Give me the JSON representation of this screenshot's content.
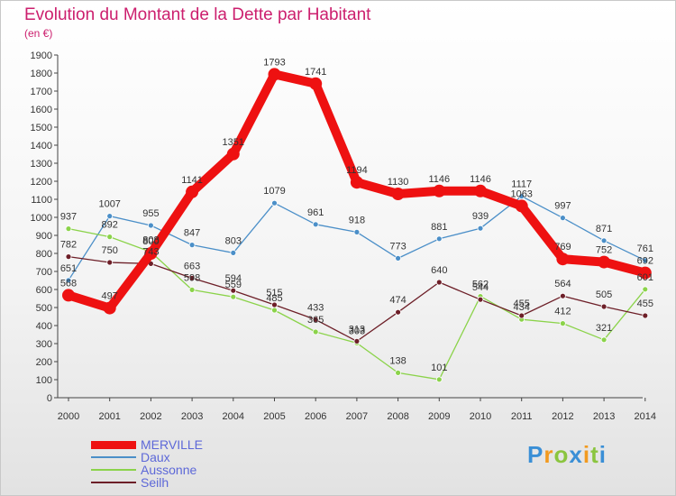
{
  "chart_data": {
    "type": "line",
    "title": "Evolution du Montant de la Dette par Habitant",
    "subtitle": "(en €)",
    "xlabel": "",
    "ylabel": "",
    "categories": [
      "2000",
      "2001",
      "2002",
      "2003",
      "2004",
      "2005",
      "2006",
      "2007",
      "2008",
      "2009",
      "2010",
      "2011",
      "2012",
      "2013",
      "2014"
    ],
    "ylim": [
      0,
      1900
    ],
    "yticks": [
      0,
      100,
      200,
      300,
      400,
      500,
      600,
      700,
      800,
      900,
      1000,
      1100,
      1200,
      1300,
      1400,
      1500,
      1600,
      1700,
      1800,
      1900
    ],
    "grid": false,
    "legend_position": "bottom-left",
    "series": [
      {
        "name": "MERVILLE",
        "color": "#ee1111",
        "values": [
          568,
          497,
          800,
          1141,
          1351,
          1793,
          1741,
          1194,
          1130,
          1146,
          1146,
          1063,
          769,
          752,
          692
        ]
      },
      {
        "name": "Daux",
        "color": "#4b8fc8",
        "values": [
          651,
          1007,
          955,
          847,
          803,
          1079,
          961,
          918,
          773,
          881,
          939,
          1117,
          997,
          871,
          761
        ]
      },
      {
        "name": "Aussonne",
        "color": "#8bd34a",
        "values": [
          937,
          892,
          808,
          598,
          559,
          485,
          365,
          303,
          138,
          101,
          562,
          434,
          412,
          321,
          601
        ]
      },
      {
        "name": "Seilh",
        "color": "#6d1f28",
        "values": [
          782,
          750,
          743,
          663,
          594,
          515,
          433,
          313,
          474,
          640,
          544,
          455,
          564,
          505,
          455
        ]
      }
    ]
  },
  "brand": {
    "letters": [
      {
        "ch": "P",
        "color": "#3a8fd6"
      },
      {
        "ch": "r",
        "color": "#f29a1f"
      },
      {
        "ch": "o",
        "color": "#8bc53f"
      },
      {
        "ch": "x",
        "color": "#3a8fd6"
      },
      {
        "ch": "i",
        "color": "#f29a1f"
      },
      {
        "ch": "t",
        "color": "#8bc53f"
      },
      {
        "ch": "i",
        "color": "#3a8fd6"
      }
    ]
  }
}
